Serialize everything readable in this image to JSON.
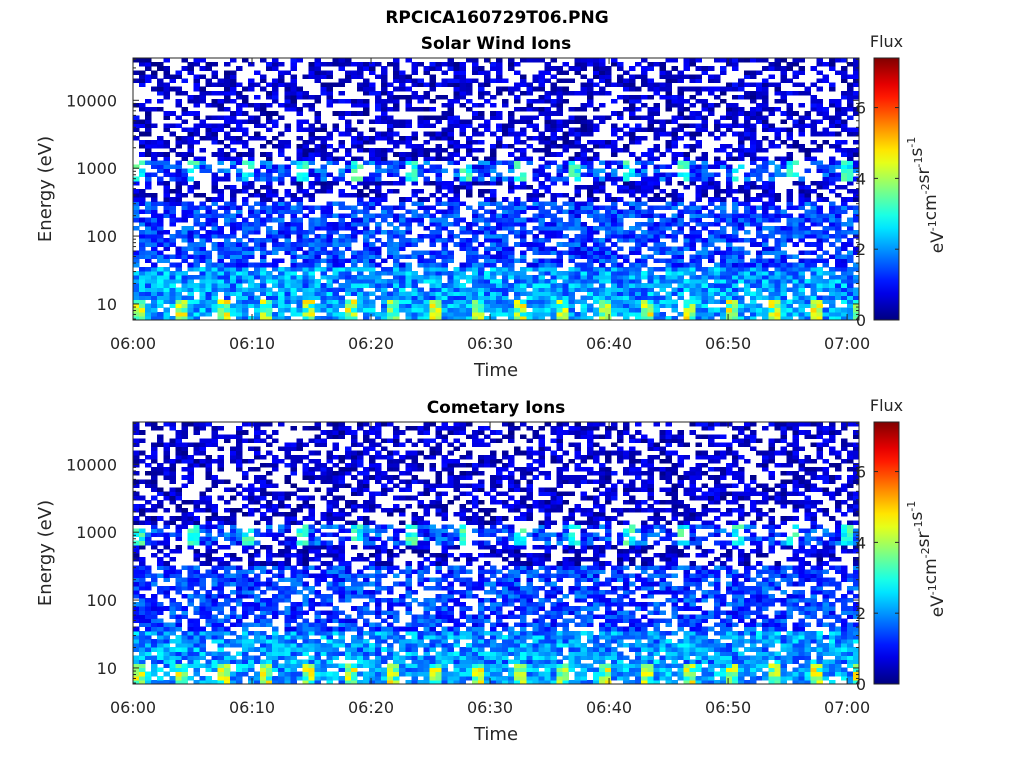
{
  "figure": {
    "title": "RPCICA160729T06.PNG"
  },
  "chart_data": [
    {
      "type": "heatmap",
      "title": "Solar Wind Ions",
      "xlabel": "Time",
      "ylabel": "Energy (eV)",
      "x_ticks": [
        "06:00",
        "06:10",
        "06:20",
        "06:30",
        "06:40",
        "06:50",
        "07:00"
      ],
      "x_range": [
        "06:00",
        "07:01"
      ],
      "y_scale": "log",
      "y_ticks": [
        10,
        100,
        1000,
        10000
      ],
      "y_tick_labels": [
        "10",
        "100",
        "1000",
        "10000"
      ],
      "y_range": [
        5.8,
        42000
      ],
      "colorbar": {
        "title": "Flux",
        "label_text": "eV",
        "label_html": "eV<sup>-1</sup>cm<sup>-2</sup>sr<sup>-1</sup>s<sup>-1</sup>",
        "ticks": [
          0,
          2,
          4,
          6
        ],
        "range": [
          0,
          7.4
        ],
        "colormap": "jet"
      },
      "seed": 11
    },
    {
      "type": "heatmap",
      "title": "Cometary Ions",
      "xlabel": "Time",
      "ylabel": "Energy (eV)",
      "x_ticks": [
        "06:00",
        "06:10",
        "06:20",
        "06:30",
        "06:40",
        "06:50",
        "07:00"
      ],
      "x_range": [
        "06:00",
        "07:01"
      ],
      "y_scale": "log",
      "y_ticks": [
        10,
        100,
        1000,
        10000
      ],
      "y_tick_labels": [
        "10",
        "100",
        "1000",
        "10000"
      ],
      "y_range": [
        5.8,
        42000
      ],
      "colorbar": {
        "title": "Flux",
        "label_text": "eV",
        "label_html": "eV<sup>-1</sup>cm<sup>-2</sup>sr<sup>-1</sup>s<sup>-1</sup>",
        "ticks": [
          0,
          2,
          4,
          6
        ],
        "range": [
          0,
          7.4
        ],
        "colormap": "jet"
      },
      "seed": 23
    }
  ]
}
